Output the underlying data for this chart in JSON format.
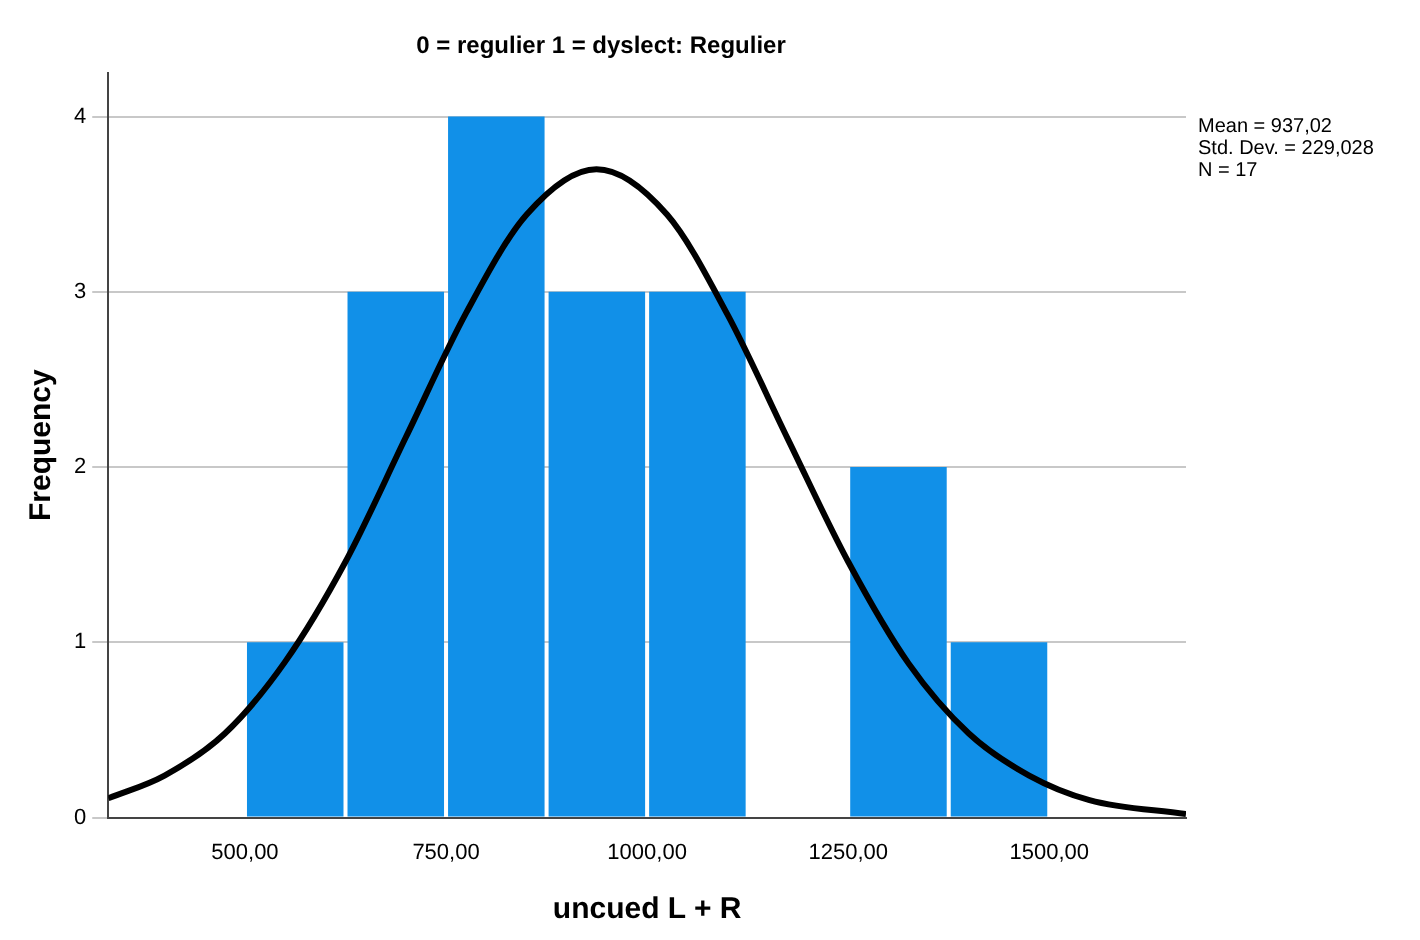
{
  "chart_data": {
    "type": "histogram",
    "title": "0 = regulier 1 = dyslect: Regulier",
    "xlabel": "uncued L + R",
    "ylabel": "Frequency",
    "bins": [
      500,
      625,
      750,
      875,
      1000,
      1125,
      1250,
      1375,
      1500
    ],
    "values": [
      1,
      3,
      4,
      3,
      3,
      0,
      2,
      1
    ],
    "color": "#1190e8",
    "series": [
      {
        "type": "line",
        "color": "#000000",
        "x": [
          330,
          400,
          475,
          550,
          625,
          700,
          775,
          850,
          937.02,
          1025,
          1100,
          1175,
          1250,
          1325,
          1400,
          1475,
          1550,
          1670
        ],
        "values": [
          0.11,
          0.24,
          0.48,
          0.89,
          1.46,
          2.17,
          2.88,
          3.44,
          3.7,
          3.44,
          2.87,
          2.16,
          1.46,
          0.88,
          0.48,
          0.24,
          0.1,
          0.02
        ]
      }
    ],
    "xlim": [
      330,
      1670
    ],
    "xticks": [
      {
        "value": 500,
        "label": "500,00"
      },
      {
        "value": 750,
        "label": "750,00"
      },
      {
        "value": 1000,
        "label": "1000,00"
      },
      {
        "value": 1250,
        "label": "1250,00"
      },
      {
        "value": 1500,
        "label": "1500,00"
      }
    ],
    "ylim": [
      0,
      4.25
    ],
    "yticks": [
      0,
      1,
      2,
      3,
      4
    ],
    "grid": "y",
    "legend": false,
    "annotations": [
      "Mean = 937,02",
      "Std. Dev. = 229,028",
      "N = 17"
    ]
  }
}
